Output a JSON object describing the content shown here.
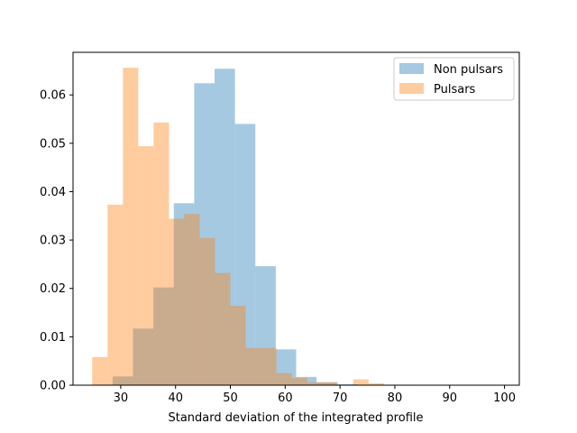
{
  "chart_data": {
    "type": "bar",
    "title": "",
    "xlabel": "Standard deviation of the integrated profile",
    "ylabel": "",
    "xlim": [
      21.3,
      102.7
    ],
    "ylim": [
      0,
      0.0688
    ],
    "xticks": [
      30,
      40,
      50,
      60,
      70,
      80,
      90,
      100
    ],
    "yticks": [
      0.0,
      0.01,
      0.02,
      0.03,
      0.04,
      0.05,
      0.06
    ],
    "ytick_labels": [
      "0.00",
      "0.01",
      "0.02",
      "0.03",
      "0.04",
      "0.05",
      "0.06"
    ],
    "grid": false,
    "legend_position": "top-right",
    "series": [
      {
        "name": "Non pulsars",
        "color": "#1f77b4",
        "opacity": 0.4,
        "bin_edges": [
          24.8,
          28.52,
          32.24,
          35.96,
          39.68,
          43.4,
          47.12,
          50.84,
          54.56,
          58.28,
          62.0,
          65.72,
          69.44,
          73.16,
          76.88,
          80.6,
          84.32
        ],
        "values": [
          0.0,
          0.0018,
          0.0117,
          0.0202,
          0.0376,
          0.0624,
          0.0654,
          0.054,
          0.0246,
          0.0074,
          0.0017,
          0.0006,
          0.0002,
          0.0001,
          0.0001,
          0.0001
        ]
      },
      {
        "name": "Pulsars",
        "color": "#ff7f0e",
        "opacity": 0.4,
        "bin_edges": [
          24.8,
          27.6,
          30.4,
          33.2,
          36.0,
          38.8,
          41.6,
          44.4,
          47.2,
          50.0,
          52.8,
          55.6,
          58.4,
          61.2,
          64.0,
          66.8,
          69.6,
          72.4,
          75.2,
          78.0
        ],
        "values": [
          0.0058,
          0.0373,
          0.0656,
          0.0494,
          0.0543,
          0.0344,
          0.0354,
          0.0304,
          0.0232,
          0.0164,
          0.0077,
          0.0077,
          0.0025,
          0.0015,
          0.0006,
          0.0006,
          0.0,
          0.0012,
          0.0004
        ]
      }
    ]
  }
}
